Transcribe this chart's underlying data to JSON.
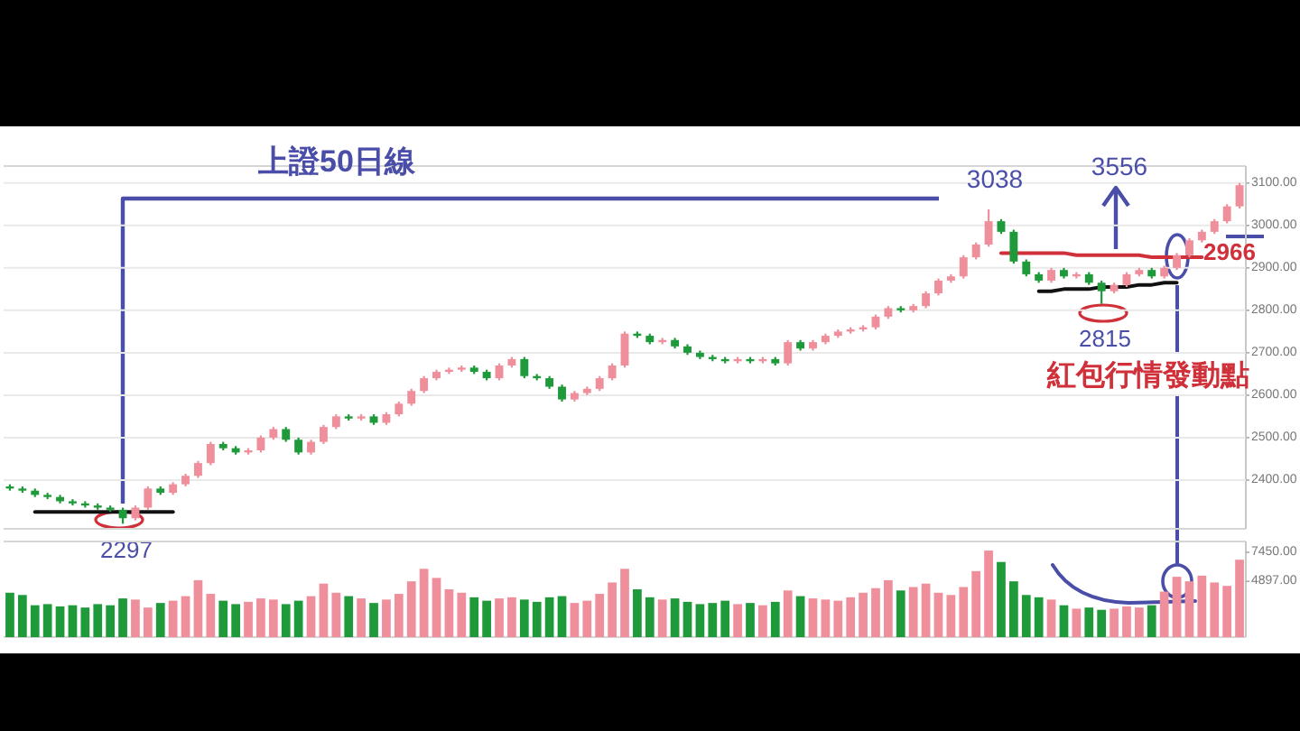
{
  "chart_data": [
    {
      "type": "candlestick",
      "title": "上證50日線",
      "categories": [
        null,
        null,
        null,
        null,
        null,
        null,
        null,
        null,
        null,
        null,
        null,
        null,
        null,
        null,
        null,
        null,
        null,
        null,
        null,
        null,
        null,
        null,
        null,
        null,
        null,
        null,
        null,
        null,
        null,
        null,
        null,
        null,
        null,
        null,
        null,
        null,
        null,
        null,
        null,
        null,
        null,
        null,
        null,
        null,
        null,
        null,
        null,
        null,
        null,
        null,
        null,
        null,
        null,
        null,
        null,
        null,
        null,
        null,
        null,
        null,
        null,
        null,
        null,
        null,
        null,
        null,
        null,
        null,
        null,
        null,
        null,
        null,
        null,
        null,
        null,
        null,
        null,
        null,
        null,
        null,
        null,
        null,
        null,
        null,
        null,
        null,
        null,
        null,
        null,
        null,
        null,
        null,
        null,
        null,
        null,
        null,
        null,
        null,
        null
      ],
      "ohlc": [
        [
          2385,
          2390,
          2375,
          2380
        ],
        [
          2380,
          2385,
          2370,
          2375
        ],
        [
          2375,
          2380,
          2360,
          2365
        ],
        [
          2365,
          2370,
          2355,
          2360
        ],
        [
          2360,
          2365,
          2345,
          2350
        ],
        [
          2350,
          2355,
          2340,
          2345
        ],
        [
          2345,
          2350,
          2335,
          2340
        ],
        [
          2340,
          2345,
          2330,
          2335
        ],
        [
          2335,
          2340,
          2325,
          2330
        ],
        [
          2330,
          2335,
          2297,
          2310
        ],
        [
          2310,
          2340,
          2305,
          2335
        ],
        [
          2335,
          2385,
          2330,
          2380
        ],
        [
          2380,
          2385,
          2365,
          2370
        ],
        [
          2370,
          2395,
          2365,
          2390
        ],
        [
          2390,
          2415,
          2385,
          2410
        ],
        [
          2410,
          2445,
          2405,
          2440
        ],
        [
          2440,
          2490,
          2435,
          2485
        ],
        [
          2485,
          2490,
          2470,
          2475
        ],
        [
          2475,
          2480,
          2460,
          2465
        ],
        [
          2465,
          2475,
          2460,
          2470
        ],
        [
          2470,
          2505,
          2465,
          2500
        ],
        [
          2500,
          2525,
          2495,
          2520
        ],
        [
          2520,
          2525,
          2490,
          2495
        ],
        [
          2495,
          2500,
          2460,
          2465
        ],
        [
          2465,
          2495,
          2460,
          2490
        ],
        [
          2490,
          2530,
          2485,
          2525
        ],
        [
          2525,
          2555,
          2520,
          2550
        ],
        [
          2550,
          2555,
          2540,
          2545
        ],
        [
          2545,
          2555,
          2540,
          2550
        ],
        [
          2550,
          2555,
          2530,
          2535
        ],
        [
          2535,
          2560,
          2530,
          2555
        ],
        [
          2555,
          2585,
          2550,
          2580
        ],
        [
          2580,
          2615,
          2575,
          2610
        ],
        [
          2610,
          2645,
          2605,
          2640
        ],
        [
          2640,
          2660,
          2635,
          2655
        ],
        [
          2655,
          2665,
          2650,
          2660
        ],
        [
          2660,
          2670,
          2655,
          2665
        ],
        [
          2665,
          2670,
          2650,
          2655
        ],
        [
          2655,
          2660,
          2635,
          2640
        ],
        [
          2640,
          2675,
          2635,
          2670
        ],
        [
          2670,
          2690,
          2665,
          2685
        ],
        [
          2685,
          2690,
          2640,
          2645
        ],
        [
          2645,
          2650,
          2635,
          2640
        ],
        [
          2640,
          2645,
          2615,
          2620
        ],
        [
          2620,
          2625,
          2585,
          2590
        ],
        [
          2590,
          2610,
          2585,
          2605
        ],
        [
          2605,
          2620,
          2600,
          2615
        ],
        [
          2615,
          2645,
          2610,
          2640
        ],
        [
          2640,
          2675,
          2635,
          2670
        ],
        [
          2670,
          2750,
          2665,
          2745
        ],
        [
          2745,
          2750,
          2735,
          2740
        ],
        [
          2740,
          2745,
          2720,
          2725
        ],
        [
          2725,
          2735,
          2720,
          2730
        ],
        [
          2730,
          2735,
          2710,
          2715
        ],
        [
          2715,
          2720,
          2695,
          2700
        ],
        [
          2700,
          2705,
          2685,
          2690
        ],
        [
          2690,
          2695,
          2680,
          2685
        ],
        [
          2685,
          2690,
          2675,
          2680
        ],
        [
          2680,
          2690,
          2675,
          2685
        ],
        [
          2685,
          2690,
          2675,
          2680
        ],
        [
          2680,
          2690,
          2675,
          2685
        ],
        [
          2685,
          2690,
          2670,
          2675
        ],
        [
          2675,
          2730,
          2670,
          2725
        ],
        [
          2725,
          2730,
          2705,
          2710
        ],
        [
          2710,
          2730,
          2705,
          2725
        ],
        [
          2725,
          2745,
          2720,
          2740
        ],
        [
          2740,
          2755,
          2735,
          2750
        ],
        [
          2750,
          2760,
          2745,
          2755
        ],
        [
          2755,
          2765,
          2750,
          2760
        ],
        [
          2760,
          2790,
          2755,
          2785
        ],
        [
          2785,
          2810,
          2780,
          2805
        ],
        [
          2805,
          2810,
          2795,
          2800
        ],
        [
          2800,
          2815,
          2795,
          2810
        ],
        [
          2810,
          2845,
          2805,
          2840
        ],
        [
          2840,
          2875,
          2835,
          2870
        ],
        [
          2870,
          2885,
          2865,
          2880
        ],
        [
          2880,
          2930,
          2875,
          2925
        ],
        [
          2925,
          2960,
          2920,
          2955
        ],
        [
          2955,
          3038,
          2950,
          3010
        ],
        [
          3010,
          3015,
          2980,
          2985
        ],
        [
          2985,
          2990,
          2910,
          2915
        ],
        [
          2915,
          2920,
          2880,
          2885
        ],
        [
          2885,
          2890,
          2865,
          2870
        ],
        [
          2870,
          2900,
          2865,
          2895
        ],
        [
          2895,
          2900,
          2875,
          2880
        ],
        [
          2880,
          2890,
          2875,
          2885
        ],
        [
          2885,
          2890,
          2860,
          2865
        ],
        [
          2865,
          2870,
          2815,
          2845
        ],
        [
          2845,
          2865,
          2840,
          2860
        ],
        [
          2860,
          2890,
          2855,
          2885
        ],
        [
          2885,
          2900,
          2880,
          2895
        ],
        [
          2895,
          2900,
          2875,
          2880
        ],
        [
          2880,
          2905,
          2875,
          2900
        ],
        [
          2900,
          2935,
          2895,
          2930
        ],
        [
          2930,
          2970,
          2925,
          2965
        ],
        [
          2965,
          2990,
          2960,
          2985
        ],
        [
          2985,
          3015,
          2980,
          3010
        ],
        [
          3010,
          3050,
          3005,
          3045
        ],
        [
          3045,
          3100,
          3040,
          3095
        ]
      ],
      "colors": [
        "#1f9a3a",
        "#1f9a3a",
        "#1f9a3a",
        "#1f9a3a",
        "#1f9a3a",
        "#1f9a3a",
        "#1f9a3a",
        "#1f9a3a",
        "#1f9a3a",
        "#1f9a3a",
        "#ef8f9c",
        "#ef8f9c",
        "#1f9a3a",
        "#ef8f9c",
        "#ef8f9c",
        "#ef8f9c",
        "#ef8f9c",
        "#1f9a3a",
        "#1f9a3a",
        "#ef8f9c",
        "#ef8f9c",
        "#ef8f9c",
        "#1f9a3a",
        "#1f9a3a",
        "#ef8f9c",
        "#ef8f9c",
        "#ef8f9c",
        "#1f9a3a",
        "#ef8f9c",
        "#1f9a3a",
        "#ef8f9c",
        "#ef8f9c",
        "#ef8f9c",
        "#ef8f9c",
        "#ef8f9c",
        "#ef8f9c",
        "#ef8f9c",
        "#1f9a3a",
        "#1f9a3a",
        "#ef8f9c",
        "#ef8f9c",
        "#1f9a3a",
        "#1f9a3a",
        "#1f9a3a",
        "#1f9a3a",
        "#ef8f9c",
        "#ef8f9c",
        "#ef8f9c",
        "#ef8f9c",
        "#ef8f9c",
        "#1f9a3a",
        "#1f9a3a",
        "#ef8f9c",
        "#1f9a3a",
        "#1f9a3a",
        "#1f9a3a",
        "#1f9a3a",
        "#1f9a3a",
        "#ef8f9c",
        "#1f9a3a",
        "#ef8f9c",
        "#1f9a3a",
        "#ef8f9c",
        "#1f9a3a",
        "#ef8f9c",
        "#ef8f9c",
        "#ef8f9c",
        "#ef8f9c",
        "#ef8f9c",
        "#ef8f9c",
        "#ef8f9c",
        "#1f9a3a",
        "#ef8f9c",
        "#ef8f9c",
        "#ef8f9c",
        "#ef8f9c",
        "#ef8f9c",
        "#ef8f9c",
        "#ef8f9c",
        "#1f9a3a",
        "#1f9a3a",
        "#1f9a3a",
        "#1f9a3a",
        "#ef8f9c",
        "#1f9a3a",
        "#ef8f9c",
        "#1f9a3a",
        "#1f9a3a",
        "#ef8f9c",
        "#ef8f9c",
        "#ef8f9c",
        "#1f9a3a",
        "#ef8f9c",
        "#ef8f9c",
        "#ef8f9c",
        "#ef8f9c",
        "#ef8f9c",
        "#ef8f9c",
        "#ef8f9c"
      ],
      "series": [
        {
          "type": "line",
          "color": "#111111",
          "values": [
            null,
            null,
            2325,
            2325,
            2325,
            2325,
            2325,
            2325,
            2325,
            2325,
            2325,
            2325,
            2325,
            2325,
            null,
            null,
            null,
            null,
            null,
            null,
            null,
            null,
            null,
            null,
            null,
            null,
            null,
            null,
            null,
            null,
            null,
            null,
            null,
            null,
            null,
            null,
            null,
            null,
            null,
            null,
            null,
            null,
            null,
            null,
            null,
            null,
            null,
            null,
            null,
            null,
            null,
            null,
            null,
            null,
            null,
            null,
            null,
            null,
            null,
            null,
            null,
            null,
            null,
            null,
            null,
            null,
            null,
            null,
            null,
            null,
            null,
            null,
            null,
            null,
            null,
            null,
            null,
            null,
            null,
            null,
            null,
            null,
            null,
            null,
            null,
            null,
            null,
            null,
            null,
            null,
            null,
            null,
            null,
            null,
            null,
            null,
            null,
            null,
            null
          ]
        },
        {
          "type": "line",
          "color": "#111111",
          "values": [
            null,
            null,
            null,
            null,
            null,
            null,
            null,
            null,
            null,
            null,
            null,
            null,
            null,
            null,
            null,
            null,
            null,
            null,
            null,
            null,
            null,
            null,
            null,
            null,
            null,
            null,
            null,
            null,
            null,
            null,
            null,
            null,
            null,
            null,
            null,
            null,
            null,
            null,
            null,
            null,
            null,
            null,
            null,
            null,
            null,
            null,
            null,
            null,
            null,
            null,
            null,
            null,
            null,
            null,
            null,
            null,
            null,
            null,
            null,
            null,
            null,
            null,
            null,
            null,
            null,
            null,
            null,
            null,
            null,
            null,
            null,
            null,
            null,
            null,
            null,
            null,
            null,
            null,
            null,
            null,
            null,
            null,
            2845,
            2845,
            2850,
            2850,
            2850,
            2855,
            2855,
            2855,
            2860,
            2860,
            2865,
            2865,
            null,
            null,
            null,
            null,
            null
          ]
        },
        {
          "type": "line",
          "color": "#d0303a",
          "values": [
            null,
            null,
            null,
            null,
            null,
            null,
            null,
            null,
            null,
            null,
            null,
            null,
            null,
            null,
            null,
            null,
            null,
            null,
            null,
            null,
            null,
            null,
            null,
            null,
            null,
            null,
            null,
            null,
            null,
            null,
            null,
            null,
            null,
            null,
            null,
            null,
            null,
            null,
            null,
            null,
            null,
            null,
            null,
            null,
            null,
            null,
            null,
            null,
            null,
            null,
            null,
            null,
            null,
            null,
            null,
            null,
            null,
            null,
            null,
            null,
            null,
            null,
            null,
            null,
            null,
            null,
            null,
            null,
            null,
            null,
            null,
            null,
            null,
            null,
            null,
            null,
            null,
            null,
            null,
            2935,
            2935,
            2935,
            2935,
            2935,
            2935,
            2930,
            2930,
            2930,
            2930,
            2930,
            2930,
            2925,
            2925,
            2925,
            2925,
            2925,
            null,
            null,
            null
          ]
        }
      ],
      "ylim": [
        2285,
        3140
      ],
      "yticks": [
        {
          "value": 2400,
          "label": "2400.00"
        },
        {
          "value": 2500,
          "label": "2500.00"
        },
        {
          "value": 2600,
          "label": "2600.00"
        },
        {
          "value": 2700,
          "label": "2700.00"
        },
        {
          "value": 2800,
          "label": "2800.00"
        },
        {
          "value": 2900,
          "label": "2900.00"
        },
        {
          "value": 3000,
          "label": "3000.00"
        },
        {
          "value": 3100,
          "label": "3100.00"
        }
      ],
      "grid": "y",
      "annotations": [
        "3038",
        "3556",
        "2966",
        "2815",
        "2297",
        "紅包行情發動點"
      ]
    },
    {
      "type": "bar",
      "categories": [
        null,
        null,
        null,
        null,
        null,
        null,
        null,
        null,
        null,
        null,
        null,
        null,
        null,
        null,
        null,
        null,
        null,
        null,
        null,
        null,
        null,
        null,
        null,
        null,
        null,
        null,
        null,
        null,
        null,
        null,
        null,
        null,
        null,
        null,
        null,
        null,
        null,
        null,
        null,
        null,
        null,
        null,
        null,
        null,
        null,
        null,
        null,
        null,
        null,
        null,
        null,
        null,
        null,
        null,
        null,
        null,
        null,
        null,
        null,
        null,
        null,
        null,
        null,
        null,
        null,
        null,
        null,
        null,
        null,
        null,
        null,
        null,
        null,
        null,
        null,
        null,
        null,
        null,
        null,
        null,
        null,
        null,
        null,
        null,
        null,
        null,
        null,
        null,
        null,
        null,
        null,
        null,
        null,
        null,
        null,
        null,
        null,
        null,
        null
      ],
      "values": [
        3900,
        3700,
        2800,
        2900,
        2700,
        2800,
        2600,
        2900,
        2800,
        3400,
        3300,
        2600,
        3000,
        3200,
        3600,
        5000,
        3800,
        3200,
        2900,
        3100,
        3400,
        3300,
        2900,
        3200,
        3600,
        4700,
        3900,
        3600,
        3400,
        3000,
        3300,
        3800,
        4900,
        6000,
        5200,
        4200,
        3900,
        3500,
        3200,
        3400,
        3500,
        3300,
        3100,
        3500,
        3600,
        3000,
        3200,
        3800,
        4800,
        6000,
        4200,
        3500,
        3300,
        3400,
        3100,
        2900,
        3000,
        3200,
        2900,
        3000,
        2800,
        3100,
        4100,
        3600,
        3400,
        3300,
        3200,
        3500,
        3900,
        4300,
        5000,
        4100,
        4400,
        4700,
        3900,
        3700,
        4400,
        5800,
        7600,
        6600,
        4900,
        3700,
        3500,
        3300,
        2800,
        2500,
        2600,
        2400,
        2500,
        2700,
        2600,
        2800,
        4000,
        5300,
        4900,
        5400,
        4800,
        4500,
        6800
      ],
      "colors": [
        "#1f9a3a",
        "#1f9a3a",
        "#1f9a3a",
        "#1f9a3a",
        "#1f9a3a",
        "#1f9a3a",
        "#1f9a3a",
        "#1f9a3a",
        "#1f9a3a",
        "#1f9a3a",
        "#ef8f9c",
        "#ef8f9c",
        "#1f9a3a",
        "#ef8f9c",
        "#ef8f9c",
        "#ef8f9c",
        "#ef8f9c",
        "#1f9a3a",
        "#1f9a3a",
        "#ef8f9c",
        "#ef8f9c",
        "#ef8f9c",
        "#1f9a3a",
        "#1f9a3a",
        "#ef8f9c",
        "#ef8f9c",
        "#ef8f9c",
        "#1f9a3a",
        "#ef8f9c",
        "#1f9a3a",
        "#ef8f9c",
        "#ef8f9c",
        "#ef8f9c",
        "#ef8f9c",
        "#ef8f9c",
        "#ef8f9c",
        "#ef8f9c",
        "#1f9a3a",
        "#1f9a3a",
        "#ef8f9c",
        "#ef8f9c",
        "#1f9a3a",
        "#1f9a3a",
        "#1f9a3a",
        "#1f9a3a",
        "#ef8f9c",
        "#ef8f9c",
        "#ef8f9c",
        "#ef8f9c",
        "#ef8f9c",
        "#1f9a3a",
        "#1f9a3a",
        "#ef8f9c",
        "#1f9a3a",
        "#1f9a3a",
        "#1f9a3a",
        "#1f9a3a",
        "#1f9a3a",
        "#ef8f9c",
        "#1f9a3a",
        "#ef8f9c",
        "#1f9a3a",
        "#ef8f9c",
        "#1f9a3a",
        "#ef8f9c",
        "#ef8f9c",
        "#ef8f9c",
        "#ef8f9c",
        "#ef8f9c",
        "#ef8f9c",
        "#ef8f9c",
        "#1f9a3a",
        "#ef8f9c",
        "#ef8f9c",
        "#ef8f9c",
        "#ef8f9c",
        "#ef8f9c",
        "#ef8f9c",
        "#ef8f9c",
        "#1f9a3a",
        "#1f9a3a",
        "#1f9a3a",
        "#1f9a3a",
        "#ef8f9c",
        "#1f9a3a",
        "#ef8f9c",
        "#1f9a3a",
        "#1f9a3a",
        "#ef8f9c",
        "#ef8f9c",
        "#ef8f9c",
        "#1f9a3a",
        "#ef8f9c",
        "#ef8f9c",
        "#ef8f9c",
        "#ef8f9c",
        "#ef8f9c",
        "#ef8f9c",
        "#ef8f9c"
      ],
      "ylim": [
        0,
        8400
      ],
      "yticks": [
        {
          "value": 4897,
          "label": "4897.00"
        },
        {
          "value": 7450,
          "label": "7450.00"
        }
      ]
    }
  ]
}
